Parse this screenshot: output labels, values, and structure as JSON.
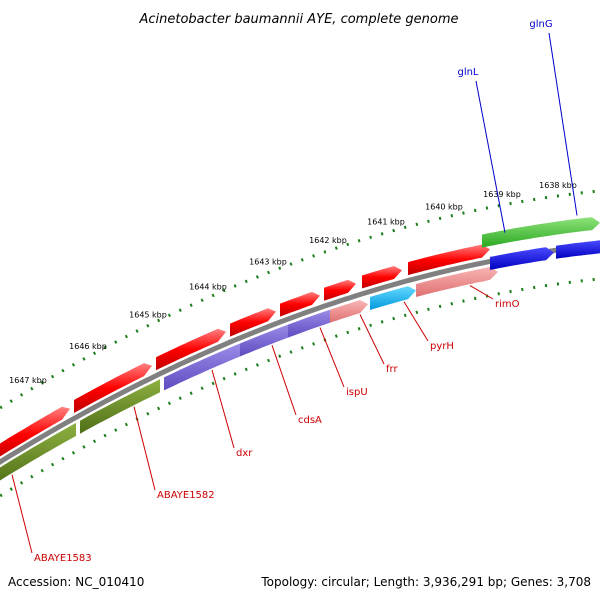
{
  "title": "Acinetobacter baumannii AYE, complete genome",
  "accession": "Accession: NC_010410",
  "summary": "Topology: circular; Length: 3,936,291 bp; Genes: 3,708",
  "ruler_labels": [
    "1638 kbp",
    "1639 kbp",
    "1640 kbp",
    "1641 kbp",
    "1642 kbp",
    "1643 kbp",
    "1644 kbp",
    "1645 kbp",
    "1646 kbp",
    "1647 kbp"
  ],
  "colors": {
    "ruler": "#1a7f1a",
    "backbone": "#808080",
    "cds_forward": "#ff0000",
    "cds_forward_faded": "#f08080",
    "gene_green": "#44cc33",
    "gene_blue": "#0000ee",
    "gene_purple": "#7b68d8",
    "gene_olive": "#6b8e23",
    "gene_cyan": "#00bfff",
    "label_red": "#cc0000",
    "label_blue": "#0000cc"
  },
  "genes": [
    {
      "name": "glnG",
      "color": "#0000cc"
    },
    {
      "name": "glnL",
      "color": "#0000cc"
    },
    {
      "name": "rimO",
      "color": "#cc0000"
    },
    {
      "name": "pyrH",
      "color": "#cc0000"
    },
    {
      "name": "frr",
      "color": "#cc0000"
    },
    {
      "name": "ispU",
      "color": "#cc0000"
    },
    {
      "name": "cdsA",
      "color": "#cc0000"
    },
    {
      "name": "dxr",
      "color": "#cc0000"
    },
    {
      "name": "ABAYE1582",
      "color": "#cc0000"
    },
    {
      "name": "ABAYE1583",
      "color": "#cc0000"
    }
  ]
}
